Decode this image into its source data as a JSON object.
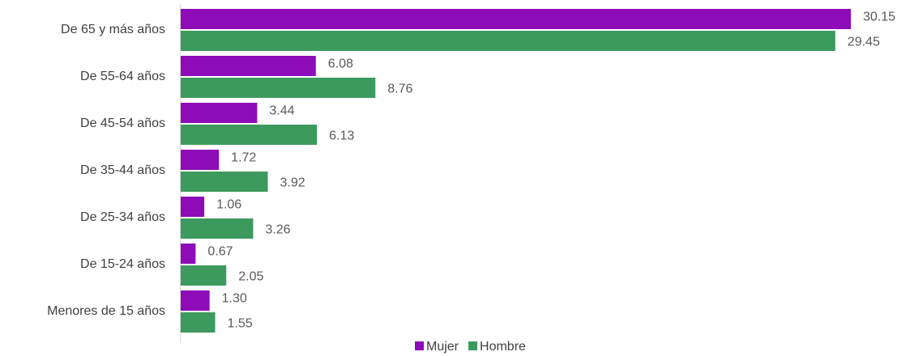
{
  "chart_data": {
    "type": "bar",
    "orientation": "horizontal",
    "categories": [
      "De 65 y más años",
      "De 55-64 años",
      "De 45-54 años",
      "De 35-44 años",
      "De 25-34 años",
      "De 15-24 años",
      "Menores de 15 años"
    ],
    "series": [
      {
        "name": "Mujer",
        "color": "#8e0bb8",
        "values": [
          30.15,
          6.08,
          3.44,
          1.72,
          1.06,
          0.67,
          1.3
        ],
        "value_labels": [
          "30.15",
          "6.08",
          "3.44",
          "1.72",
          "1.06",
          "0.67",
          "1.30"
        ]
      },
      {
        "name": "Hombre",
        "color": "#3d9a5e",
        "values": [
          29.45,
          8.76,
          6.13,
          3.92,
          3.26,
          2.05,
          1.55
        ],
        "value_labels": [
          "29.45",
          "8.76",
          "6.13",
          "3.92",
          "3.26",
          "2.05",
          "1.55"
        ]
      }
    ],
    "legend": "bottom"
  }
}
